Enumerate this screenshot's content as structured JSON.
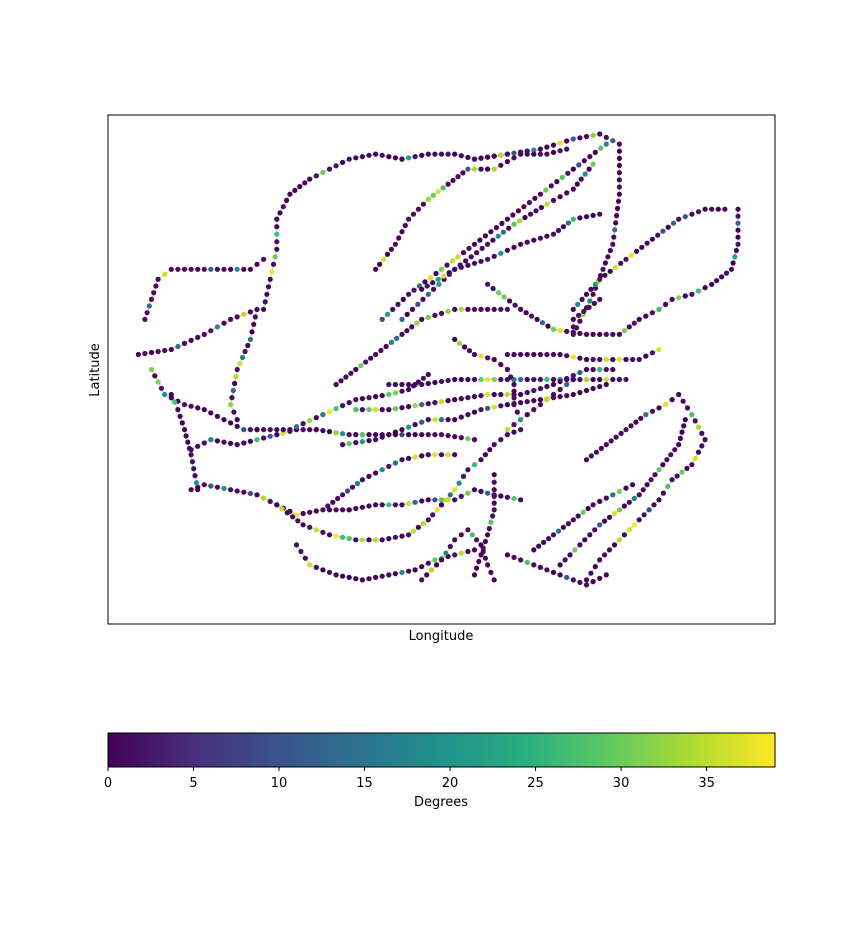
{
  "chart_data": {
    "type": "scatter",
    "title": "",
    "xlabel": "Longitude",
    "ylabel": "Latitude",
    "x_ticks_visible": false,
    "y_ticks_visible": false,
    "grid": false,
    "colormap": "viridis",
    "colorbar": {
      "label": "Degrees",
      "orientation": "horizontal",
      "placement": "bottom",
      "range": [
        0,
        39
      ],
      "ticks": [
        "0",
        "5",
        "10",
        "15",
        "20",
        "25",
        "30",
        "35"
      ]
    },
    "xlim": [
      0,
      100
    ],
    "ylim": [
      0,
      100
    ],
    "series": [
      {
        "points": [
          [
            55,
            92
          ],
          [
            60,
            93
          ],
          [
            65,
            94
          ],
          [
            70,
            96
          ],
          [
            74,
            97
          ],
          [
            77,
            95
          ],
          [
            77,
            85
          ],
          [
            76,
            75
          ],
          [
            73,
            65
          ],
          [
            70,
            57
          ],
          [
            70,
            60
          ],
          [
            74,
            64
          ]
        ]
      },
      {
        "points": [
          [
            44,
            92
          ],
          [
            48,
            93
          ],
          [
            52,
            93
          ],
          [
            55,
            92
          ],
          [
            60,
            93
          ]
        ]
      },
      {
        "points": [
          [
            25,
            80
          ],
          [
            27,
            85
          ],
          [
            30,
            88
          ],
          [
            33,
            90
          ],
          [
            36,
            92
          ],
          [
            40,
            93
          ],
          [
            44,
            92
          ]
        ]
      },
      {
        "points": [
          [
            23,
            62
          ],
          [
            24,
            68
          ],
          [
            25,
            74
          ],
          [
            25,
            80
          ]
        ]
      },
      {
        "points": [
          [
            5,
            60
          ],
          [
            7,
            68
          ],
          [
            9,
            70
          ],
          [
            13,
            70
          ],
          [
            17,
            70
          ],
          [
            21,
            70
          ],
          [
            23,
            72
          ]
        ]
      },
      {
        "points": [
          [
            4,
            53
          ],
          [
            9,
            54
          ],
          [
            14,
            57
          ],
          [
            18,
            60
          ],
          [
            22,
            62
          ],
          [
            21,
            56
          ],
          [
            19,
            50
          ],
          [
            18,
            43
          ],
          [
            19,
            40
          ]
        ]
      },
      {
        "points": [
          [
            6,
            50
          ],
          [
            8,
            45
          ],
          [
            11,
            43
          ],
          [
            14,
            42
          ],
          [
            17,
            40
          ],
          [
            20,
            38
          ],
          [
            22,
            38
          ]
        ]
      },
      {
        "points": [
          [
            12,
            34
          ],
          [
            15,
            36
          ],
          [
            19,
            35
          ],
          [
            22,
            36
          ],
          [
            25,
            37
          ],
          [
            28,
            38
          ],
          [
            31,
            38
          ]
        ]
      },
      {
        "points": [
          [
            22,
            38
          ],
          [
            27,
            38
          ],
          [
            32,
            41
          ],
          [
            37,
            44
          ],
          [
            42,
            45
          ],
          [
            45,
            46
          ],
          [
            48,
            49
          ]
        ]
      },
      {
        "points": [
          [
            31,
            38
          ],
          [
            36,
            37
          ],
          [
            41,
            37
          ],
          [
            46,
            37
          ],
          [
            50,
            37
          ],
          [
            55,
            36
          ]
        ]
      },
      {
        "points": [
          [
            12,
            26
          ],
          [
            14,
            27
          ],
          [
            18,
            26
          ],
          [
            22,
            25
          ],
          [
            25,
            23
          ],
          [
            28,
            21
          ],
          [
            32,
            22
          ],
          [
            36,
            22
          ]
        ]
      },
      {
        "points": [
          [
            25,
            23
          ],
          [
            29,
            19
          ],
          [
            33,
            17
          ],
          [
            37,
            16
          ],
          [
            41,
            16
          ],
          [
            45,
            17
          ],
          [
            48,
            20
          ],
          [
            50,
            23
          ]
        ]
      },
      {
        "points": [
          [
            36,
            22
          ],
          [
            40,
            23
          ],
          [
            44,
            23
          ],
          [
            48,
            24
          ],
          [
            52,
            24
          ],
          [
            55,
            26
          ],
          [
            58,
            25
          ],
          [
            62,
            24
          ]
        ]
      },
      {
        "points": [
          [
            50,
            23
          ],
          [
            52,
            26
          ],
          [
            54,
            30
          ],
          [
            56,
            32
          ],
          [
            58,
            35
          ],
          [
            60,
            37
          ],
          [
            62,
            38
          ]
        ]
      },
      {
        "points": [
          [
            55,
            9
          ],
          [
            56,
            13
          ],
          [
            57,
            17
          ],
          [
            58,
            22
          ],
          [
            58,
            26
          ],
          [
            58,
            29
          ]
        ]
      },
      {
        "points": [
          [
            60,
            13
          ],
          [
            64,
            11
          ],
          [
            68,
            9
          ],
          [
            72,
            7
          ],
          [
            75,
            9
          ]
        ]
      },
      {
        "points": [
          [
            64,
            14
          ],
          [
            67,
            17
          ],
          [
            70,
            20
          ],
          [
            73,
            23
          ],
          [
            76,
            25
          ],
          [
            79,
            27
          ]
        ]
      },
      {
        "points": [
          [
            68,
            11
          ],
          [
            71,
            15
          ],
          [
            74,
            19
          ],
          [
            77,
            22
          ],
          [
            80,
            25
          ],
          [
            83,
            30
          ],
          [
            86,
            35
          ],
          [
            87,
            40
          ]
        ]
      },
      {
        "points": [
          [
            72,
            8
          ],
          [
            74,
            12
          ],
          [
            77,
            16
          ],
          [
            80,
            20
          ],
          [
            83,
            24
          ],
          [
            85,
            28
          ],
          [
            88,
            31
          ],
          [
            90,
            36
          ],
          [
            88,
            41
          ],
          [
            86,
            45
          ]
        ]
      },
      {
        "points": [
          [
            72,
            32
          ],
          [
            75,
            35
          ],
          [
            78,
            38
          ],
          [
            81,
            41
          ],
          [
            84,
            43
          ],
          [
            86,
            45
          ]
        ]
      },
      {
        "points": [
          [
            34,
            47
          ],
          [
            37,
            50
          ],
          [
            40,
            53
          ],
          [
            44,
            57
          ],
          [
            47,
            60
          ],
          [
            52,
            62
          ],
          [
            56,
            62
          ],
          [
            60,
            62
          ]
        ]
      },
      {
        "points": [
          [
            42,
            47
          ],
          [
            47,
            47
          ],
          [
            52,
            48
          ],
          [
            57,
            48
          ],
          [
            62,
            48
          ],
          [
            66,
            48
          ],
          [
            70,
            48
          ],
          [
            74,
            48
          ],
          [
            78,
            48
          ]
        ]
      },
      {
        "points": [
          [
            37,
            42
          ],
          [
            42,
            42
          ],
          [
            47,
            43
          ],
          [
            52,
            44
          ],
          [
            57,
            45
          ],
          [
            62,
            45
          ],
          [
            67,
            47
          ],
          [
            72,
            50
          ],
          [
            76,
            50
          ]
        ]
      },
      {
        "points": [
          [
            35,
            35
          ],
          [
            40,
            36
          ],
          [
            44,
            38
          ],
          [
            48,
            40
          ],
          [
            52,
            40
          ],
          [
            56,
            42
          ],
          [
            60,
            43
          ],
          [
            65,
            44
          ],
          [
            70,
            45
          ],
          [
            75,
            47
          ]
        ]
      },
      {
        "points": [
          [
            41,
            60
          ],
          [
            45,
            65
          ],
          [
            50,
            70
          ],
          [
            55,
            75
          ],
          [
            60,
            80
          ],
          [
            65,
            85
          ],
          [
            70,
            90
          ],
          [
            75,
            95
          ]
        ]
      },
      {
        "points": [
          [
            44,
            60
          ],
          [
            48,
            65
          ],
          [
            52,
            70
          ],
          [
            57,
            75
          ],
          [
            61,
            79
          ],
          [
            66,
            83
          ],
          [
            70,
            86
          ],
          [
            73,
            91
          ]
        ]
      },
      {
        "points": [
          [
            47,
            66
          ],
          [
            52,
            70
          ],
          [
            57,
            72
          ],
          [
            62,
            75
          ],
          [
            67,
            77
          ],
          [
            70,
            80
          ],
          [
            74,
            81
          ]
        ]
      },
      {
        "points": [
          [
            57,
            67
          ],
          [
            62,
            62
          ],
          [
            67,
            58
          ],
          [
            72,
            57
          ],
          [
            77,
            57
          ],
          [
            80,
            60
          ],
          [
            83,
            62
          ],
          [
            85,
            64
          ],
          [
            88,
            65
          ],
          [
            91,
            67
          ],
          [
            94,
            70
          ],
          [
            95,
            75
          ],
          [
            95,
            82
          ]
        ]
      },
      {
        "points": [
          [
            70,
            62
          ],
          [
            74,
            68
          ],
          [
            78,
            72
          ],
          [
            82,
            76
          ],
          [
            86,
            80
          ],
          [
            90,
            82
          ],
          [
            93,
            82
          ]
        ]
      },
      {
        "points": [
          [
            40,
            70
          ],
          [
            43,
            75
          ],
          [
            45,
            80
          ],
          [
            48,
            84
          ],
          [
            51,
            87
          ],
          [
            54,
            90
          ],
          [
            58,
            90
          ],
          [
            62,
            93
          ],
          [
            66,
            93
          ],
          [
            69,
            94
          ]
        ]
      },
      {
        "points": [
          [
            52,
            56
          ],
          [
            55,
            53
          ],
          [
            58,
            52
          ],
          [
            60,
            50
          ],
          [
            61,
            47
          ],
          [
            61,
            43
          ],
          [
            62,
            40
          ]
        ]
      },
      {
        "points": [
          [
            60,
            53
          ],
          [
            64,
            53
          ],
          [
            68,
            53
          ],
          [
            72,
            52
          ],
          [
            76,
            52
          ],
          [
            80,
            52
          ],
          [
            83,
            54
          ]
        ]
      },
      {
        "points": [
          [
            32,
            22
          ],
          [
            35,
            25
          ],
          [
            38,
            28
          ],
          [
            41,
            30
          ],
          [
            44,
            32
          ],
          [
            48,
            33
          ],
          [
            52,
            33
          ]
        ]
      },
      {
        "points": [
          [
            28,
            15
          ],
          [
            30,
            11
          ],
          [
            34,
            9
          ],
          [
            38,
            8
          ],
          [
            42,
            9
          ],
          [
            46,
            10
          ],
          [
            49,
            12
          ],
          [
            52,
            13
          ],
          [
            55,
            14
          ]
        ]
      },
      {
        "points": [
          [
            47,
            8
          ],
          [
            50,
            12
          ],
          [
            52,
            16
          ],
          [
            54,
            18
          ],
          [
            56,
            15
          ],
          [
            57,
            11
          ],
          [
            58,
            8
          ]
        ]
      },
      {
        "points": [
          [
            60,
            38
          ],
          [
            62,
            40
          ],
          [
            64,
            42
          ],
          [
            66,
            44
          ],
          [
            68,
            46
          ],
          [
            70,
            48
          ]
        ]
      },
      {
        "points": [
          [
            13,
            26
          ],
          [
            12,
            33
          ],
          [
            11,
            38
          ],
          [
            10,
            42
          ],
          [
            9,
            45
          ]
        ]
      }
    ]
  }
}
